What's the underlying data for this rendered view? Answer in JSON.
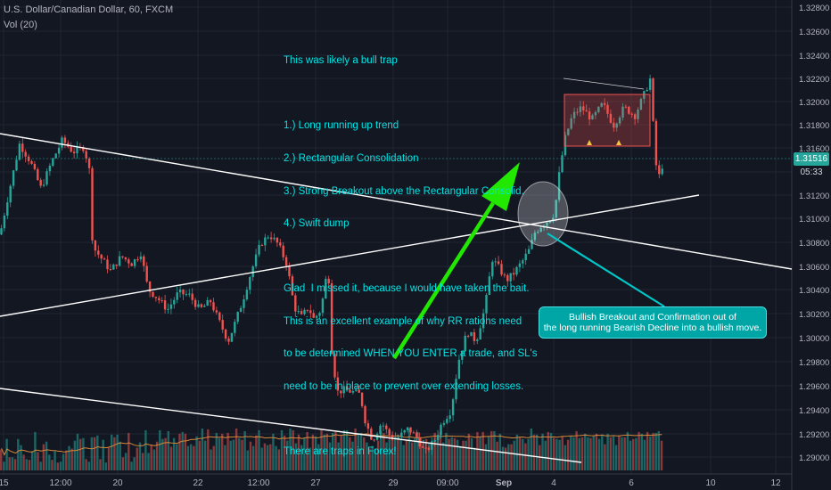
{
  "header": {
    "symbol_line": "U.S. Dollar/Canadian Dollar, 60, FXCM",
    "indicator_line": "Vol (20)"
  },
  "annotations": {
    "note_lines": [
      "This was likely a bull trap",
      "",
      "1.) Long running up trend",
      "2.) Rectangular Consolidation",
      "3.) Strong Breakout above the Rectangular Consolid.",
      "4.) Swift dump",
      "",
      "Glad  I missed it, because I would have taken the bait.",
      "This is an excellent example of why RR rations need",
      "to be determined WHEN YOU ENTER a trade, and SL's",
      "need to be in place to prevent over extending losses.",
      "",
      "There are traps in Forex!"
    ],
    "callout_lines": [
      "Bullish Breakout and Confirmation out of",
      "the long running Bearish Decline into a bullish move."
    ]
  },
  "chart_data": {
    "type": "line",
    "title": "U.S. Dollar/Canadian Dollar, 60, FXCM",
    "x_tick_labels": [
      "15",
      "12:00",
      "20",
      "22",
      "12:00",
      "27",
      "29",
      "09:00",
      "Sep",
      "4",
      "6",
      "10",
      "12"
    ],
    "y_tick_labels": [
      "1.32800",
      "1.32600",
      "1.32400",
      "1.32200",
      "1.32000",
      "1.31800",
      "1.31600",
      "1.31400",
      "1.31200",
      "1.31000",
      "1.30800",
      "1.30600",
      "1.30400",
      "1.30200",
      "1.30000",
      "1.29800",
      "1.29600",
      "1.29400",
      "1.29200",
      "1.29000"
    ],
    "ylim": [
      1.2888,
      1.3285
    ],
    "last_price": "1.31516",
    "countdown": "05:33",
    "series": [
      {
        "values": [
          [
            0,
            1.309
          ],
          [
            10,
            1.3125
          ],
          [
            22,
            1.3165
          ],
          [
            34,
            1.315
          ],
          [
            46,
            1.3128
          ],
          [
            58,
            1.315
          ],
          [
            70,
            1.3168
          ],
          [
            82,
            1.3158
          ],
          [
            94,
            1.3162
          ],
          [
            100,
            1.3145
          ],
          [
            104,
            1.308
          ],
          [
            112,
            1.3072
          ],
          [
            124,
            1.306
          ],
          [
            136,
            1.3072
          ],
          [
            148,
            1.3066
          ],
          [
            158,
            1.3075
          ],
          [
            166,
            1.3045
          ],
          [
            176,
            1.3038
          ],
          [
            188,
            1.3028
          ],
          [
            200,
            1.3042
          ],
          [
            212,
            1.304
          ],
          [
            224,
            1.3028
          ],
          [
            236,
            1.3035
          ],
          [
            246,
            1.3018
          ],
          [
            256,
            1.3002
          ],
          [
            264,
            1.3018
          ],
          [
            272,
            1.3035
          ],
          [
            282,
            1.306
          ],
          [
            292,
            1.3082
          ],
          [
            302,
            1.309
          ],
          [
            312,
            1.3082
          ],
          [
            322,
            1.3065
          ],
          [
            330,
            1.303
          ],
          [
            338,
            1.3022
          ],
          [
            346,
            1.303
          ],
          [
            352,
            1.302
          ],
          [
            360,
            1.3028
          ],
          [
            368,
            1.3065
          ],
          [
            372,
            1.2995
          ],
          [
            378,
            1.296
          ],
          [
            386,
            1.2962
          ],
          [
            396,
            1.296
          ],
          [
            404,
            1.2958
          ],
          [
            410,
            1.2935
          ],
          [
            418,
            1.292
          ],
          [
            428,
            1.2935
          ],
          [
            436,
            1.2925
          ],
          [
            446,
            1.2922
          ],
          [
            458,
            1.293
          ],
          [
            468,
            1.2922
          ],
          [
            476,
            1.291
          ],
          [
            486,
            1.2918
          ],
          [
            496,
            1.2935
          ],
          [
            506,
            1.2945
          ],
          [
            514,
            1.2985
          ],
          [
            524,
            1.301
          ],
          [
            534,
            1.3002
          ],
          [
            544,
            1.303
          ],
          [
            552,
            1.307
          ],
          [
            560,
            1.3062
          ],
          [
            568,
            1.3052
          ],
          [
            576,
            1.3058
          ],
          [
            586,
            1.3068
          ],
          [
            594,
            1.3078
          ],
          [
            600,
            1.3092
          ],
          [
            608,
            1.3098
          ],
          [
            616,
            1.3102
          ],
          [
            622,
            1.3108
          ],
          [
            628,
            1.3145
          ],
          [
            634,
            1.317
          ],
          [
            642,
            1.3188
          ],
          [
            652,
            1.3195
          ],
          [
            664,
            1.3185
          ],
          [
            676,
            1.3198
          ],
          [
            688,
            1.318
          ],
          [
            700,
            1.3195
          ],
          [
            712,
            1.3188
          ],
          [
            722,
            1.3205
          ],
          [
            730,
            1.322
          ],
          [
            734,
            1.3158
          ],
          [
            738,
            1.3135
          ],
          [
            744,
            1.315
          ]
        ]
      }
    ],
    "volume_band": [
      0.24,
      0.1,
      0.36,
      0.15,
      0.15,
      0.13,
      0.36,
      0.29,
      0.18,
      0.13,
      0.12,
      0.22,
      0.44,
      0.21,
      0.1,
      0.3,
      0.33,
      0.18,
      0.12,
      0.22,
      0.09,
      0.1,
      0.19,
      0.23,
      0.28,
      0.25,
      0.34,
      0.42,
      0.36,
      0.37,
      0.13,
      0.1,
      0.38,
      0.38,
      0.4,
      0.13,
      0.35,
      0.09,
      0.26,
      0.41,
      0.38,
      0.41,
      0.33,
      0.15,
      0.2,
      0.43,
      0.1,
      0.15,
      0.26,
      0.32,
      0.2,
      0.46,
      0.2,
      0.29,
      0.24,
      0.33,
      0.46,
      0.36,
      0.37,
      0.45,
      0.27,
      0.37,
      0.3,
      0.42,
      0.44,
      0.42,
      0.28,
      0.3,
      0.28,
      0.39,
      0.34,
      0.48,
      0.34,
      0.47,
      0.24,
      0.28,
      0.43,
      0.37,
      0.42,
      0.29,
      0.43,
      0.34,
      0.35,
      0.48,
      0.37,
      0.35,
      0.45,
      0.23,
      0.33,
      0.28,
      0.4,
      0.46,
      0.26,
      0.31,
      0.29,
      0.3,
      0.42,
      0.28,
      0.24,
      0.46,
      0.4,
      0.34,
      0.48,
      0.46,
      0.31,
      0.41,
      0.29,
      0.37,
      0.44,
      0.26,
      0.41,
      0.39,
      0.3,
      0.46,
      0.41,
      0.42,
      0.32,
      0.43,
      0.44,
      0.32,
      0.4,
      0.46,
      0.46,
      0.38,
      0.33,
      0.48,
      0.43,
      0.43,
      0.38,
      0.32,
      0.25,
      0.28,
      0.25,
      0.34,
      0.45,
      0.43,
      0.32,
      0.35,
      0.4,
      0.38,
      0.41,
      0.35,
      0.29,
      0.35,
      0.48,
      0.32,
      0.37,
      0.44,
      0.37,
      0.35,
      0.36,
      0.32,
      0.34,
      0.43,
      0.38,
      0.44,
      0.32,
      0.43,
      0.36,
      0.38,
      0.37,
      0.35,
      0.28,
      0.34,
      0.34,
      0.42,
      0.37,
      0.26,
      0.44,
      0.39,
      0.44,
      0.3,
      0.39,
      0.45,
      0.45,
      0.33,
      0.42,
      0.27,
      0.26,
      0.3,
      0.3,
      0.34,
      0.41,
      0.38,
      0.36,
      0.31,
      0.36,
      0.48,
      0.41,
      0.41,
      0.29,
      0.42,
      0.34,
      0.44,
      0.43,
      0.37,
      0.36,
      0.35,
      0.39,
      0.29,
      0.35,
      0.39,
      0.38,
      0.45,
      0.37,
      0.38,
      0.42,
      0.38,
      0.37,
      0.4,
      0.42,
      0.36,
      0.41,
      0.3,
      0.42,
      0.38,
      0.39,
      0.29,
      0.4,
      0.38,
      0.38,
      0.44,
      0.34,
      0.36,
      0.37,
      0.44,
      0.42,
      0.35,
      0.44,
      0.39,
      0.43,
      0.43,
      0.45,
      0.34
    ],
    "colors": {
      "bull": "#26a69a",
      "bear": "#ef5350",
      "annotation_text": "#00e5e5",
      "arrow": "#22e800",
      "callout_bg": "#00a6a6",
      "trendline": "#ffffff",
      "volume_ma": "#d4883a",
      "rectangle": "#ef5350"
    }
  }
}
